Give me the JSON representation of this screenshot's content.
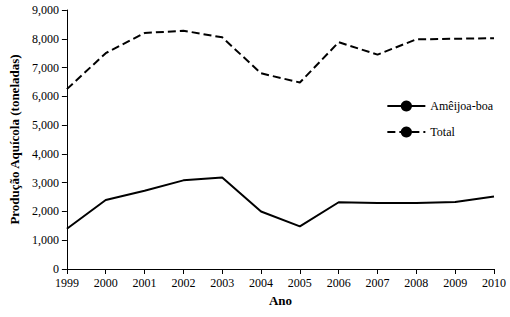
{
  "chart_data": {
    "type": "line",
    "x_label": "Ano",
    "y_label": "Produção Aquícola (toneladas)",
    "categories": [
      "1999",
      "2000",
      "2001",
      "2002",
      "2003",
      "2004",
      "2005",
      "2006",
      "2007",
      "2008",
      "2009",
      "2010"
    ],
    "series": [
      {
        "name": "Amêijoa-boa",
        "color": "#000000",
        "line_style": "solid",
        "values": [
          1400,
          2400,
          2720,
          3080,
          3180,
          2000,
          1480,
          2320,
          2290,
          2290,
          2330,
          2520
        ]
      },
      {
        "name": "Total",
        "color": "#000000",
        "line_style": "dashed",
        "values": [
          6250,
          7500,
          8200,
          8280,
          8050,
          6800,
          6480,
          7880,
          7450,
          7980,
          8000,
          8020
        ]
      }
    ],
    "ylim": [
      0,
      9000
    ],
    "yticks": [
      0,
      1000,
      2000,
      3000,
      4000,
      5000,
      6000,
      7000,
      8000,
      9000
    ],
    "grid": false,
    "legend": "right"
  }
}
